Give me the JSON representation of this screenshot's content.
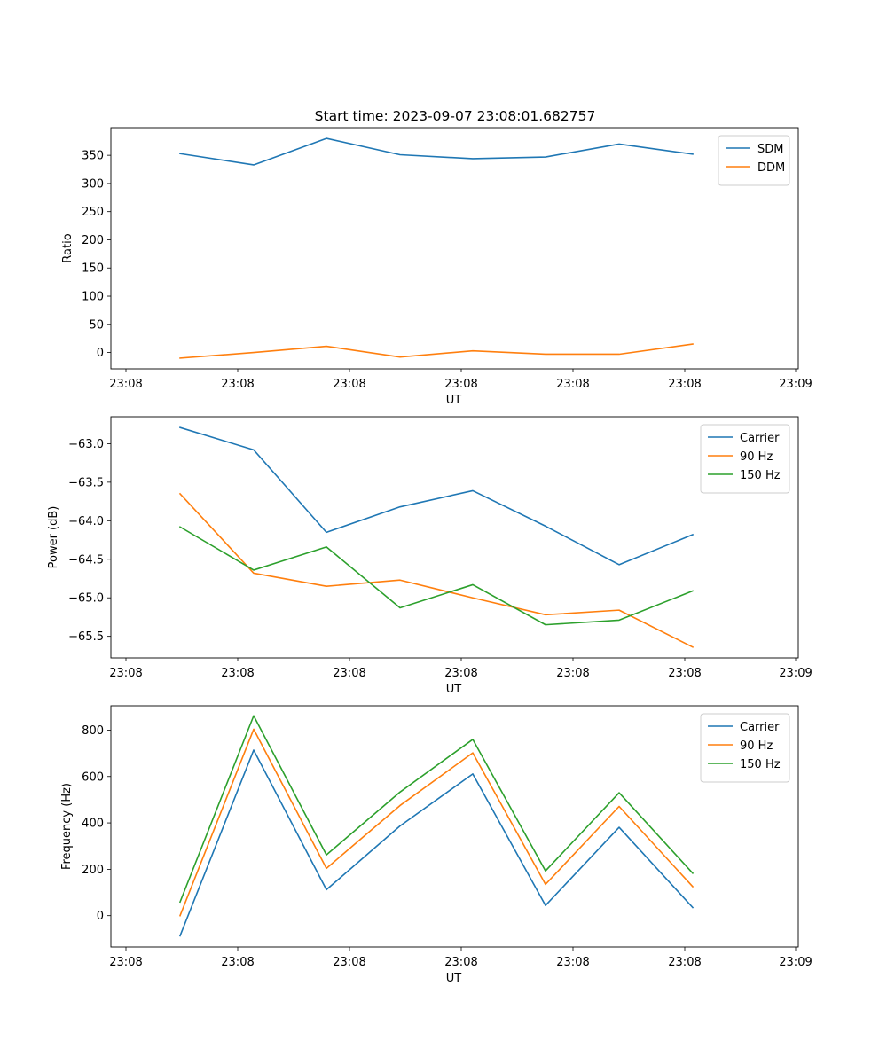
{
  "figure": {
    "title": "Start time: 2023-09-07 23:08:01.682757"
  },
  "chart_data": [
    {
      "type": "line",
      "title": "Start time: 2023-09-07 23:08:01.682757",
      "xlabel": "UT",
      "ylabel": "Ratio",
      "x_tick_labels": [
        "23:08",
        "23:08",
        "23:08",
        "23:08",
        "23:08",
        "23:08",
        "23:09"
      ],
      "y_ticks": [
        0,
        50,
        100,
        150,
        200,
        250,
        300,
        350
      ],
      "ylim": [
        -29,
        399
      ],
      "legend_position": "upper-right",
      "series": [
        {
          "name": "SDM",
          "color": "#1f77b4",
          "values": [
            353,
            333,
            380,
            351,
            344,
            347,
            370,
            352
          ]
        },
        {
          "name": "DDM",
          "color": "#ff7f0e",
          "values": [
            -10,
            0,
            11,
            -8,
            3,
            -3,
            -3,
            15
          ]
        }
      ]
    },
    {
      "type": "line",
      "xlabel": "UT",
      "ylabel": "Power (dB)",
      "x_tick_labels": [
        "23:08",
        "23:08",
        "23:08",
        "23:08",
        "23:08",
        "23:08",
        "23:09"
      ],
      "y_ticks": [
        -65.5,
        -65.0,
        -64.5,
        -64.0,
        -63.5,
        -63.0
      ],
      "y_tick_labels": [
        "−65.5",
        "−65.0",
        "−64.5",
        "−64.0",
        "−63.5",
        "−63.0"
      ],
      "ylim": [
        -65.78,
        -62.65
      ],
      "legend_position": "upper-right",
      "series": [
        {
          "name": "Carrier",
          "color": "#1f77b4",
          "values": [
            -62.79,
            -63.08,
            -64.15,
            -63.82,
            -63.61,
            -64.07,
            -64.57,
            -64.18
          ]
        },
        {
          "name": "90 Hz",
          "color": "#ff7f0e",
          "values": [
            -63.65,
            -64.68,
            -64.85,
            -64.77,
            -65.0,
            -65.22,
            -65.16,
            -65.64
          ]
        },
        {
          "name": "150 Hz",
          "color": "#2ca02c",
          "values": [
            -64.08,
            -64.64,
            -64.34,
            -65.13,
            -64.83,
            -65.35,
            -65.29,
            -64.91
          ]
        }
      ]
    },
    {
      "type": "line",
      "xlabel": "UT",
      "ylabel": "Frequency (Hz)",
      "x_tick_labels": [
        "23:08",
        "23:08",
        "23:08",
        "23:08",
        "23:08",
        "23:08",
        "23:09"
      ],
      "y_ticks": [
        0,
        200,
        400,
        600,
        800
      ],
      "ylim": [
        -135,
        905
      ],
      "legend_position": "upper-right",
      "series": [
        {
          "name": "Carrier",
          "color": "#1f77b4",
          "values": [
            -87,
            714,
            112,
            387,
            611,
            44,
            381,
            35
          ]
        },
        {
          "name": "90 Hz",
          "color": "#ff7f0e",
          "values": [
            0,
            804,
            204,
            475,
            702,
            135,
            471,
            125
          ]
        },
        {
          "name": "150 Hz",
          "color": "#2ca02c",
          "values": [
            59,
            862,
            262,
            533,
            760,
            193,
            530,
            183
          ]
        }
      ]
    }
  ]
}
